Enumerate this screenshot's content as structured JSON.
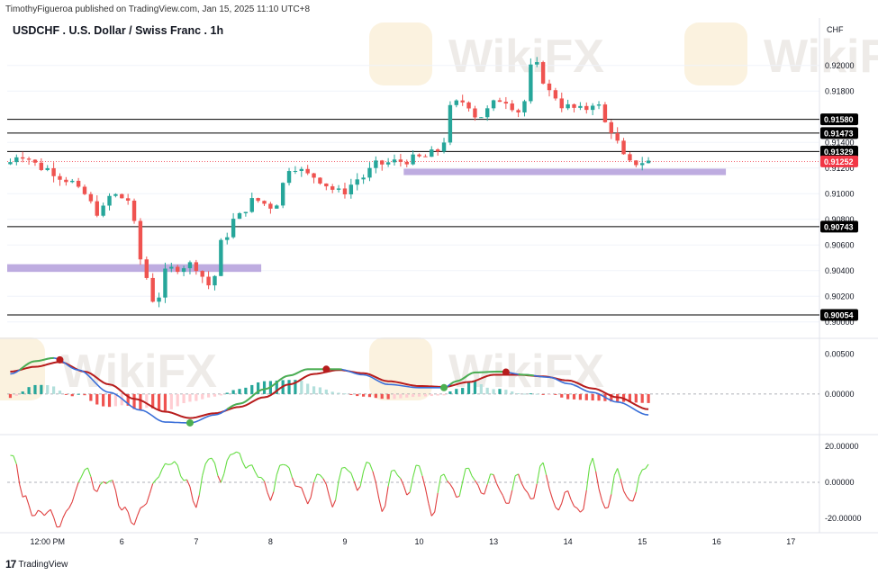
{
  "header": {
    "publisher": "TimothyFigueroa published on TradingView.com, Jan 15, 2025 11:10 UTC+8",
    "title": "USDCHF . U.S. Dollar / Swiss Franc . 1h"
  },
  "footer": {
    "logo_text": "TradingView",
    "logo_mark": "17"
  },
  "watermark": {
    "text": "WikiFX"
  },
  "colors": {
    "up": "#26a69a",
    "down": "#ef5350",
    "sr_line": "#000000",
    "zone": "#b39ddb",
    "macd": "#3a6fd8",
    "signal": "#b71c1c",
    "cross_up": "#4caf50",
    "cross_down": "#b71c1c",
    "osc_up": "#66dd44",
    "osc_down": "#e04040",
    "price_badge": "#f23645"
  },
  "chart_data": [
    {
      "type": "candlestick",
      "title": "USDCHF . U.S. Dollar / Swiss Franc . 1h",
      "currency_label": "CHF",
      "ylim": [
        0.899,
        0.9223
      ],
      "y_ticks": [
        0.92,
        0.918,
        0.914,
        0.912,
        0.91,
        0.908,
        0.906,
        0.904,
        0.902,
        0.9
      ],
      "y_tick_labels": [
        "0.92000",
        "0.91800",
        "0.91400",
        "0.91200",
        "0.91000",
        "0.90800",
        "0.90600",
        "0.90400",
        "0.90200",
        "0.90000"
      ],
      "x_tick_labels": [
        "12:00 PM",
        "6",
        "7",
        "8",
        "9",
        "10",
        "13",
        "14",
        "15",
        "16",
        "17"
      ],
      "x_tick_index": [
        6,
        18,
        30,
        42,
        54,
        66,
        78,
        90,
        102,
        114,
        126
      ],
      "total_slots": 132,
      "levels": [
        {
          "value": 0.9158,
          "label": "0.91580"
        },
        {
          "value": 0.91473,
          "label": "0.91473"
        },
        {
          "value": 0.91329,
          "label": "0.91329"
        },
        {
          "value": 0.90743,
          "label": "0.90743"
        },
        {
          "value": 0.90054,
          "label": "0.90054"
        }
      ],
      "current_price": {
        "value": 0.91252,
        "label": "0.91252"
      },
      "zones": [
        {
          "from_index": 0,
          "to_index": 41,
          "low": 0.9039,
          "high": 0.9045
        },
        {
          "from_index": 64,
          "to_index": 116,
          "low": 0.91145,
          "high": 0.91195
        }
      ],
      "anchors": [
        [
          0,
          0.9123
        ],
        [
          2,
          0.9131
        ],
        [
          6,
          0.912
        ],
        [
          10,
          0.9111
        ],
        [
          12,
          0.9101
        ],
        [
          15,
          0.9085
        ],
        [
          17,
          0.9099
        ],
        [
          20,
          0.9095
        ],
        [
          21,
          0.9065
        ],
        [
          22,
          0.904
        ],
        [
          24,
          0.9015
        ],
        [
          26,
          0.9041
        ],
        [
          30,
          0.9045
        ],
        [
          33,
          0.9028
        ],
        [
          35,
          0.9065
        ],
        [
          37,
          0.9081
        ],
        [
          40,
          0.9095
        ],
        [
          43,
          0.909
        ],
        [
          46,
          0.9122
        ],
        [
          49,
          0.9114
        ],
        [
          54,
          0.9101
        ],
        [
          57,
          0.9112
        ],
        [
          60,
          0.9123
        ],
        [
          63,
          0.9125
        ],
        [
          67,
          0.9128
        ],
        [
          70,
          0.9134
        ],
        [
          72,
          0.917
        ],
        [
          74,
          0.9172
        ],
        [
          76,
          0.916
        ],
        [
          80,
          0.9174
        ],
        [
          83,
          0.9164
        ],
        [
          85,
          0.9202
        ],
        [
          88,
          0.9178
        ],
        [
          90,
          0.9168
        ],
        [
          93,
          0.9165
        ],
        [
          95,
          0.9172
        ],
        [
          97,
          0.9153
        ],
        [
          99,
          0.9138
        ],
        [
          100,
          0.9123
        ],
        [
          103,
          0.9125
        ]
      ]
    },
    {
      "type": "line",
      "name": "macd",
      "y_tick_labels": [
        "0.00500",
        "0.00000"
      ],
      "y_ticks": [
        0.005,
        0.0
      ],
      "ylim": [
        -0.0045,
        0.0065
      ],
      "macd_anchors": [
        [
          0,
          0.0025
        ],
        [
          4,
          0.0041
        ],
        [
          7,
          0.0045
        ],
        [
          11,
          0.003
        ],
        [
          16,
          0.0002
        ],
        [
          21,
          -0.002
        ],
        [
          25,
          -0.0035
        ],
        [
          29,
          -0.0036
        ],
        [
          33,
          -0.0026
        ],
        [
          37,
          -0.0012
        ],
        [
          41,
          0.0006
        ],
        [
          45,
          0.0023
        ],
        [
          48,
          0.0031
        ],
        [
          53,
          0.0031
        ],
        [
          57,
          0.0024
        ],
        [
          61,
          0.0012
        ],
        [
          66,
          0.0008
        ],
        [
          70,
          0.0008
        ],
        [
          72,
          0.0016
        ],
        [
          75,
          0.0027
        ],
        [
          79,
          0.0028
        ],
        [
          83,
          0.0024
        ],
        [
          87,
          0.0021
        ],
        [
          90,
          0.0013
        ],
        [
          94,
          0.0002
        ],
        [
          98,
          -0.001
        ],
        [
          103,
          -0.0026
        ]
      ],
      "signal_anchors": [
        [
          0,
          0.0028
        ],
        [
          4,
          0.0034
        ],
        [
          8,
          0.004
        ],
        [
          12,
          0.0028
        ],
        [
          16,
          0.0012
        ],
        [
          20,
          -0.0006
        ],
        [
          25,
          -0.0022
        ],
        [
          29,
          -0.003
        ],
        [
          33,
          -0.0024
        ],
        [
          37,
          -0.0016
        ],
        [
          41,
          -0.0004
        ],
        [
          45,
          0.0012
        ],
        [
          49,
          0.0025
        ],
        [
          53,
          0.003
        ],
        [
          57,
          0.0026
        ],
        [
          61,
          0.0016
        ],
        [
          66,
          0.001
        ],
        [
          70,
          0.0009
        ],
        [
          74,
          0.0015
        ],
        [
          78,
          0.0024
        ],
        [
          82,
          0.0024
        ],
        [
          86,
          0.0022
        ],
        [
          90,
          0.0017
        ],
        [
          94,
          0.0007
        ],
        [
          98,
          -0.0004
        ],
        [
          103,
          -0.0019
        ]
      ],
      "cross_markers": [
        {
          "index": 8,
          "direction": "down"
        },
        {
          "index": 29,
          "direction": "up"
        },
        {
          "index": 51,
          "direction": "down"
        },
        {
          "index": 70,
          "direction": "up"
        },
        {
          "index": 80,
          "direction": "down"
        }
      ]
    },
    {
      "type": "line",
      "name": "oscillator",
      "y_tick_labels": [
        "20.00000",
        "0.00000",
        "-20.00000"
      ],
      "y_ticks": [
        20,
        0,
        -20
      ],
      "ylim": [
        -26,
        24
      ],
      "anchors": [
        [
          0,
          15
        ],
        [
          1,
          10
        ],
        [
          2,
          -8
        ],
        [
          4,
          -18
        ],
        [
          6,
          -16
        ],
        [
          8,
          -24
        ],
        [
          10,
          -10
        ],
        [
          12,
          8
        ],
        [
          14,
          -4
        ],
        [
          16,
          2
        ],
        [
          18,
          -14
        ],
        [
          20,
          -22
        ],
        [
          22,
          -10
        ],
        [
          24,
          5
        ],
        [
          26,
          12
        ],
        [
          28,
          3
        ],
        [
          30,
          -12
        ],
        [
          32,
          15
        ],
        [
          34,
          2
        ],
        [
          36,
          18
        ],
        [
          38,
          10
        ],
        [
          40,
          5
        ],
        [
          42,
          -8
        ],
        [
          44,
          12
        ],
        [
          46,
          0
        ],
        [
          48,
          -10
        ],
        [
          50,
          6
        ],
        [
          52,
          -12
        ],
        [
          54,
          10
        ],
        [
          56,
          -3
        ],
        [
          58,
          12
        ],
        [
          60,
          -15
        ],
        [
          62,
          8
        ],
        [
          64,
          -6
        ],
        [
          66,
          10
        ],
        [
          68,
          -18
        ],
        [
          70,
          5
        ],
        [
          72,
          -8
        ],
        [
          74,
          8
        ],
        [
          76,
          -6
        ],
        [
          78,
          4
        ],
        [
          80,
          -12
        ],
        [
          82,
          4
        ],
        [
          84,
          -10
        ],
        [
          86,
          10
        ],
        [
          88,
          -15
        ],
        [
          90,
          -6
        ],
        [
          92,
          -18
        ],
        [
          94,
          12
        ],
        [
          96,
          -16
        ],
        [
          98,
          6
        ],
        [
          100,
          -12
        ],
        [
          102,
          5
        ],
        [
          103,
          12
        ]
      ]
    }
  ]
}
